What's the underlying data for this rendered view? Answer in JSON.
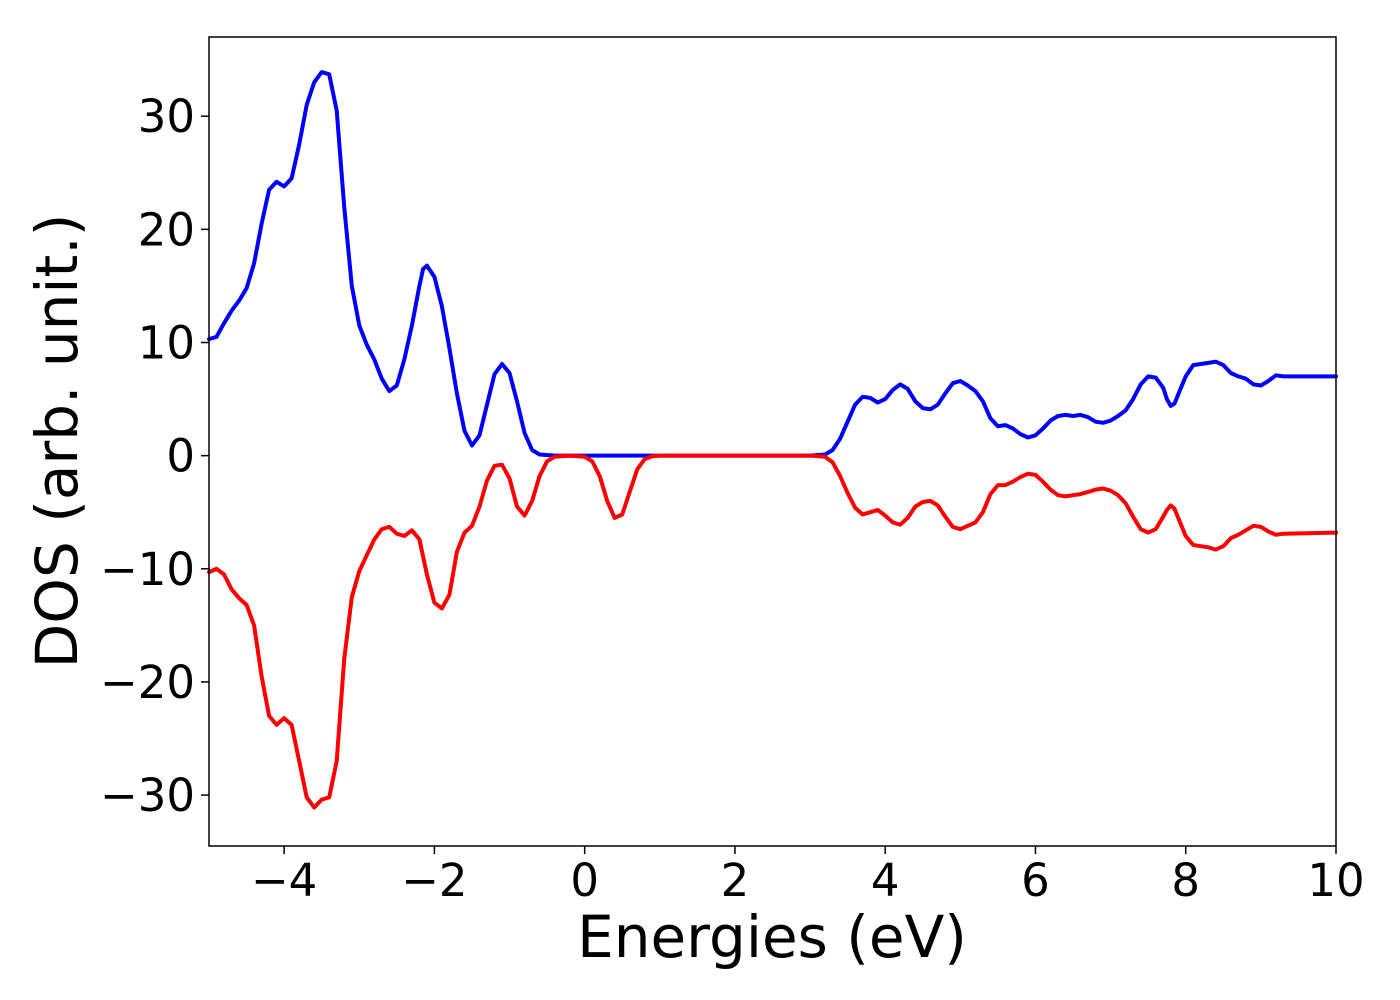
{
  "chart_data": {
    "type": "line",
    "title": "",
    "xlabel": "Energies (eV)",
    "ylabel": "DOS (arb. unit.)",
    "xlim": [
      -5,
      10
    ],
    "ylim": [
      -34.5,
      37
    ],
    "grid": false,
    "legend": "none",
    "x_ticks": [
      {
        "value": -4,
        "label": "−4"
      },
      {
        "value": -2,
        "label": "−2"
      },
      {
        "value": 0,
        "label": "0"
      },
      {
        "value": 2,
        "label": "2"
      },
      {
        "value": 4,
        "label": "4"
      },
      {
        "value": 6,
        "label": "6"
      },
      {
        "value": 8,
        "label": "8"
      },
      {
        "value": 10,
        "label": "10"
      }
    ],
    "y_ticks": [
      {
        "value": 30,
        "label": "30"
      },
      {
        "value": 20,
        "label": "20"
      },
      {
        "value": 10,
        "label": "10"
      },
      {
        "value": 0,
        "label": "0"
      },
      {
        "value": -10,
        "label": "−10"
      },
      {
        "value": -20,
        "label": "−20"
      },
      {
        "value": -30,
        "label": "−30"
      }
    ],
    "series": [
      {
        "color": "#0000ff",
        "points": [
          [
            -5.0,
            10.3
          ],
          [
            -4.9,
            10.5
          ],
          [
            -4.8,
            11.7
          ],
          [
            -4.7,
            12.8
          ],
          [
            -4.6,
            13.7
          ],
          [
            -4.5,
            14.8
          ],
          [
            -4.4,
            17.0
          ],
          [
            -4.3,
            20.5
          ],
          [
            -4.2,
            23.5
          ],
          [
            -4.1,
            24.2
          ],
          [
            -4.0,
            23.8
          ],
          [
            -3.9,
            24.5
          ],
          [
            -3.8,
            27.5
          ],
          [
            -3.7,
            31.0
          ],
          [
            -3.6,
            33.0
          ],
          [
            -3.5,
            33.9
          ],
          [
            -3.4,
            33.7
          ],
          [
            -3.3,
            30.5
          ],
          [
            -3.2,
            22.0
          ],
          [
            -3.1,
            15.0
          ],
          [
            -3.0,
            11.5
          ],
          [
            -2.9,
            9.8
          ],
          [
            -2.8,
            8.5
          ],
          [
            -2.7,
            6.8
          ],
          [
            -2.6,
            5.7
          ],
          [
            -2.5,
            6.2
          ],
          [
            -2.4,
            8.5
          ],
          [
            -2.3,
            11.5
          ],
          [
            -2.2,
            15.0
          ],
          [
            -2.15,
            16.5
          ],
          [
            -2.1,
            16.8
          ],
          [
            -2.0,
            15.8
          ],
          [
            -1.9,
            13.2
          ],
          [
            -1.8,
            9.5
          ],
          [
            -1.7,
            5.5
          ],
          [
            -1.6,
            2.2
          ],
          [
            -1.5,
            0.9
          ],
          [
            -1.4,
            1.8
          ],
          [
            -1.3,
            4.5
          ],
          [
            -1.2,
            7.2
          ],
          [
            -1.1,
            8.1
          ],
          [
            -1.0,
            7.3
          ],
          [
            -0.9,
            4.8
          ],
          [
            -0.8,
            2.0
          ],
          [
            -0.7,
            0.5
          ],
          [
            -0.6,
            0.1
          ],
          [
            -0.4,
            0.0
          ],
          [
            0.0,
            0.0
          ],
          [
            1.0,
            0.0
          ],
          [
            2.0,
            0.0
          ],
          [
            3.0,
            0.0
          ],
          [
            3.2,
            0.1
          ],
          [
            3.3,
            0.5
          ],
          [
            3.4,
            1.5
          ],
          [
            3.5,
            3.0
          ],
          [
            3.6,
            4.5
          ],
          [
            3.7,
            5.2
          ],
          [
            3.8,
            5.1
          ],
          [
            3.9,
            4.7
          ],
          [
            4.0,
            5.0
          ],
          [
            4.1,
            5.8
          ],
          [
            4.2,
            6.3
          ],
          [
            4.3,
            5.9
          ],
          [
            4.4,
            4.8
          ],
          [
            4.5,
            4.2
          ],
          [
            4.6,
            4.1
          ],
          [
            4.7,
            4.5
          ],
          [
            4.8,
            5.5
          ],
          [
            4.9,
            6.4
          ],
          [
            5.0,
            6.6
          ],
          [
            5.1,
            6.2
          ],
          [
            5.2,
            5.7
          ],
          [
            5.3,
            4.8
          ],
          [
            5.4,
            3.3
          ],
          [
            5.5,
            2.6
          ],
          [
            5.6,
            2.7
          ],
          [
            5.7,
            2.4
          ],
          [
            5.8,
            1.9
          ],
          [
            5.9,
            1.6
          ],
          [
            6.0,
            1.8
          ],
          [
            6.1,
            2.4
          ],
          [
            6.2,
            3.1
          ],
          [
            6.3,
            3.5
          ],
          [
            6.4,
            3.6
          ],
          [
            6.5,
            3.5
          ],
          [
            6.6,
            3.6
          ],
          [
            6.7,
            3.4
          ],
          [
            6.8,
            3.0
          ],
          [
            6.9,
            2.9
          ],
          [
            7.0,
            3.1
          ],
          [
            7.1,
            3.5
          ],
          [
            7.2,
            4.0
          ],
          [
            7.3,
            5.0
          ],
          [
            7.4,
            6.3
          ],
          [
            7.5,
            7.0
          ],
          [
            7.6,
            6.9
          ],
          [
            7.7,
            6.0
          ],
          [
            7.75,
            5.0
          ],
          [
            7.8,
            4.4
          ],
          [
            7.85,
            4.6
          ],
          [
            7.9,
            5.4
          ],
          [
            8.0,
            7.0
          ],
          [
            8.1,
            8.0
          ],
          [
            8.2,
            8.1
          ],
          [
            8.3,
            8.2
          ],
          [
            8.4,
            8.3
          ],
          [
            8.5,
            8.0
          ],
          [
            8.6,
            7.3
          ],
          [
            8.7,
            7.0
          ],
          [
            8.8,
            6.8
          ],
          [
            8.9,
            6.3
          ],
          [
            9.0,
            6.2
          ],
          [
            9.1,
            6.6
          ],
          [
            9.2,
            7.1
          ],
          [
            9.3,
            7.0
          ],
          [
            10.0,
            7.0
          ]
        ]
      },
      {
        "color": "#ff0000",
        "points": [
          [
            -5.0,
            -10.3
          ],
          [
            -4.9,
            -10.0
          ],
          [
            -4.8,
            -10.5
          ],
          [
            -4.7,
            -11.8
          ],
          [
            -4.6,
            -12.6
          ],
          [
            -4.5,
            -13.2
          ],
          [
            -4.4,
            -15.0
          ],
          [
            -4.3,
            -19.5
          ],
          [
            -4.2,
            -23.0
          ],
          [
            -4.1,
            -23.8
          ],
          [
            -4.0,
            -23.2
          ],
          [
            -3.9,
            -23.8
          ],
          [
            -3.8,
            -27.0
          ],
          [
            -3.7,
            -30.2
          ],
          [
            -3.6,
            -31.1
          ],
          [
            -3.5,
            -30.4
          ],
          [
            -3.4,
            -30.2
          ],
          [
            -3.3,
            -27.0
          ],
          [
            -3.2,
            -18.0
          ],
          [
            -3.1,
            -12.5
          ],
          [
            -3.0,
            -10.2
          ],
          [
            -2.9,
            -8.8
          ],
          [
            -2.8,
            -7.4
          ],
          [
            -2.7,
            -6.5
          ],
          [
            -2.6,
            -6.3
          ],
          [
            -2.5,
            -6.9
          ],
          [
            -2.4,
            -7.1
          ],
          [
            -2.3,
            -6.6
          ],
          [
            -2.2,
            -7.4
          ],
          [
            -2.1,
            -10.5
          ],
          [
            -2.0,
            -13.0
          ],
          [
            -1.9,
            -13.5
          ],
          [
            -1.8,
            -12.3
          ],
          [
            -1.7,
            -8.5
          ],
          [
            -1.6,
            -6.8
          ],
          [
            -1.5,
            -6.2
          ],
          [
            -1.4,
            -4.5
          ],
          [
            -1.3,
            -2.2
          ],
          [
            -1.2,
            -0.9
          ],
          [
            -1.1,
            -0.8
          ],
          [
            -1.0,
            -2.0
          ],
          [
            -0.9,
            -4.5
          ],
          [
            -0.8,
            -5.3
          ],
          [
            -0.7,
            -4.0
          ],
          [
            -0.6,
            -1.8
          ],
          [
            -0.5,
            -0.5
          ],
          [
            -0.4,
            -0.1
          ],
          [
            -0.2,
            0.0
          ],
          [
            0.0,
            -0.1
          ],
          [
            0.1,
            -0.5
          ],
          [
            0.2,
            -1.8
          ],
          [
            0.3,
            -4.0
          ],
          [
            0.4,
            -5.5
          ],
          [
            0.5,
            -5.2
          ],
          [
            0.6,
            -3.2
          ],
          [
            0.7,
            -1.2
          ],
          [
            0.8,
            -0.3
          ],
          [
            0.9,
            -0.05
          ],
          [
            1.0,
            0.0
          ],
          [
            2.0,
            0.0
          ],
          [
            3.0,
            0.0
          ],
          [
            3.2,
            -0.1
          ],
          [
            3.3,
            -0.6
          ],
          [
            3.4,
            -1.8
          ],
          [
            3.5,
            -3.3
          ],
          [
            3.6,
            -4.6
          ],
          [
            3.7,
            -5.2
          ],
          [
            3.8,
            -5.0
          ],
          [
            3.9,
            -4.8
          ],
          [
            4.0,
            -5.3
          ],
          [
            4.1,
            -5.9
          ],
          [
            4.2,
            -6.1
          ],
          [
            4.3,
            -5.5
          ],
          [
            4.4,
            -4.5
          ],
          [
            4.5,
            -4.1
          ],
          [
            4.6,
            -4.0
          ],
          [
            4.7,
            -4.4
          ],
          [
            4.8,
            -5.4
          ],
          [
            4.9,
            -6.3
          ],
          [
            5.0,
            -6.5
          ],
          [
            5.1,
            -6.2
          ],
          [
            5.2,
            -5.9
          ],
          [
            5.3,
            -5.0
          ],
          [
            5.4,
            -3.4
          ],
          [
            5.5,
            -2.6
          ],
          [
            5.6,
            -2.6
          ],
          [
            5.7,
            -2.3
          ],
          [
            5.8,
            -1.9
          ],
          [
            5.9,
            -1.6
          ],
          [
            6.0,
            -1.7
          ],
          [
            6.1,
            -2.3
          ],
          [
            6.2,
            -3.0
          ],
          [
            6.3,
            -3.5
          ],
          [
            6.4,
            -3.6
          ],
          [
            6.5,
            -3.5
          ],
          [
            6.6,
            -3.4
          ],
          [
            6.7,
            -3.2
          ],
          [
            6.8,
            -3.0
          ],
          [
            6.9,
            -2.9
          ],
          [
            7.0,
            -3.1
          ],
          [
            7.1,
            -3.5
          ],
          [
            7.2,
            -4.2
          ],
          [
            7.3,
            -5.4
          ],
          [
            7.4,
            -6.5
          ],
          [
            7.5,
            -6.8
          ],
          [
            7.6,
            -6.5
          ],
          [
            7.7,
            -5.4
          ],
          [
            7.75,
            -4.8
          ],
          [
            7.8,
            -4.4
          ],
          [
            7.85,
            -4.7
          ],
          [
            7.9,
            -5.5
          ],
          [
            8.0,
            -7.1
          ],
          [
            8.1,
            -7.9
          ],
          [
            8.2,
            -8.0
          ],
          [
            8.3,
            -8.1
          ],
          [
            8.4,
            -8.3
          ],
          [
            8.5,
            -8.0
          ],
          [
            8.6,
            -7.3
          ],
          [
            8.7,
            -7.0
          ],
          [
            8.8,
            -6.6
          ],
          [
            8.9,
            -6.2
          ],
          [
            9.0,
            -6.3
          ],
          [
            9.1,
            -6.7
          ],
          [
            9.2,
            -7.0
          ],
          [
            9.3,
            -6.9
          ],
          [
            10.0,
            -6.8
          ]
        ]
      }
    ]
  }
}
